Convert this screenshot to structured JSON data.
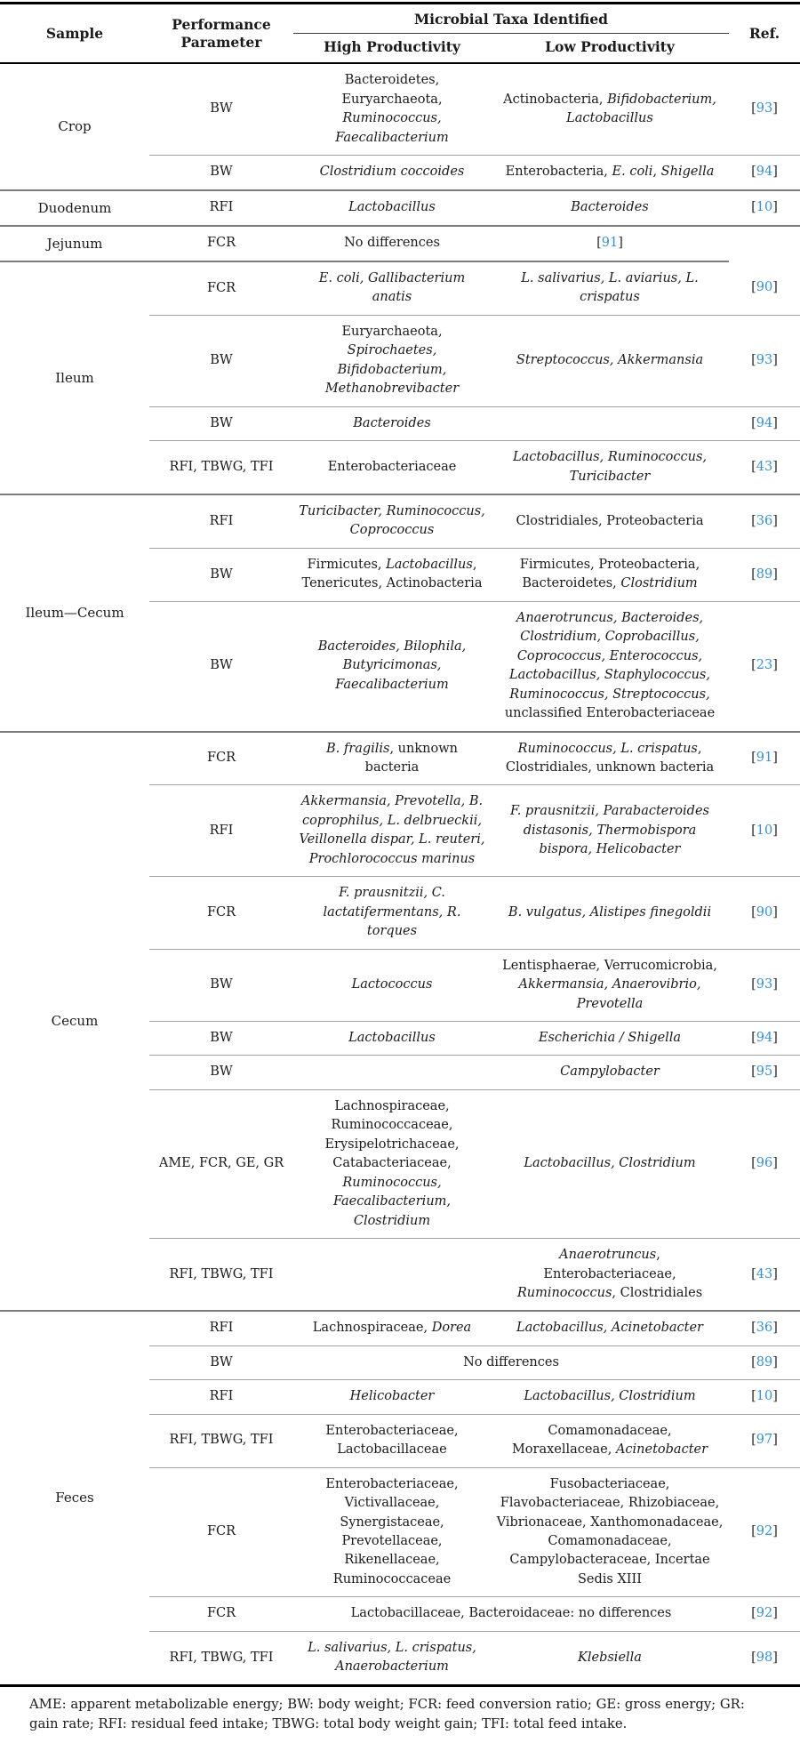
{
  "link_color": "#3a8fd1",
  "table": {
    "headers": {
      "sample": "Sample",
      "performance": "Performance Parameter",
      "taxa_group": "Microbial Taxa Identified",
      "high": "High Productivity",
      "low": "Low Productivity",
      "ref": "Ref."
    },
    "groups": [
      {
        "sample": "Crop",
        "rows": [
          {
            "param": "BW",
            "high": [
              {
                "t": "Bacteroidetes, Euryarchaeota, "
              },
              {
                "t": "Ruminococcus, Faecalibacterium",
                "i": true
              }
            ],
            "low": [
              {
                "t": "Actinobacteria, "
              },
              {
                "t": "Bifidobacterium, Lactobacillus",
                "i": true
              }
            ],
            "ref": "93"
          },
          {
            "param": "BW",
            "high": [
              {
                "t": "Clostridium coccoides",
                "i": true
              }
            ],
            "low": [
              {
                "t": "Enterobacteria, "
              },
              {
                "t": "E. coli",
                "i": true
              },
              {
                "t": ", "
              },
              {
                "t": "Shigella",
                "i": true
              }
            ],
            "ref": "94"
          }
        ]
      },
      {
        "sample": "Duodenum",
        "rows": [
          {
            "param": "RFI",
            "high": [
              {
                "t": "Lactobacillus",
                "i": true
              }
            ],
            "low": [
              {
                "t": "Bacteroides",
                "i": true
              }
            ],
            "ref": "10"
          }
        ]
      },
      {
        "sample": "Jejunum",
        "rows": [
          {
            "param": "FCR",
            "high": [
              {
                "t": "No differences"
              }
            ],
            "low": [
              {
                "r": "91"
              }
            ],
            "ref": null
          }
        ]
      },
      {
        "sample": "Ileum",
        "rows": [
          {
            "param": "FCR",
            "no_ref_rule": true,
            "high": [
              {
                "t": "E. coli, Gallibacterium anatis",
                "i": true
              }
            ],
            "low": [
              {
                "t": "L. salivarius, L. aviarius, L. crispatus",
                "i": true
              }
            ],
            "ref": "90"
          },
          {
            "param": "BW",
            "high": [
              {
                "t": "Euryarchaeota, "
              },
              {
                "t": "Spirochaetes, Bifidobacterium, Methanobrevibacter",
                "i": true
              }
            ],
            "low": [
              {
                "t": "Streptococcus, Akkermansia",
                "i": true
              }
            ],
            "ref": "93"
          },
          {
            "param": "BW",
            "high": [
              {
                "t": "Bacteroides",
                "i": true
              }
            ],
            "low": [],
            "ref": "94"
          },
          {
            "param": "RFI, TBWG, TFI",
            "high": [
              {
                "t": "Enterobacteriaceae"
              }
            ],
            "low": [
              {
                "t": "Lactobacillus, Ruminococcus, Turicibacter",
                "i": true
              }
            ],
            "ref": "43"
          }
        ]
      },
      {
        "sample": "Ileum—Cecum",
        "rows": [
          {
            "param": "RFI",
            "high": [
              {
                "t": "Turicibacter, Ruminococcus, Coprococcus",
                "i": true
              }
            ],
            "low": [
              {
                "t": "Clostridiales, Proteobacteria"
              }
            ],
            "ref": "36"
          },
          {
            "param": "BW",
            "high": [
              {
                "t": "Firmicutes, "
              },
              {
                "t": "Lactobacillus",
                "i": true
              },
              {
                "t": ", Tenericutes, Actinobacteria"
              }
            ],
            "low": [
              {
                "t": "Firmicutes, Proteobacteria, Bacteroidetes, "
              },
              {
                "t": "Clostridium",
                "i": true
              }
            ],
            "ref": "89"
          },
          {
            "param": "BW",
            "high": [
              {
                "t": "Bacteroides, Bilophila, Butyricimonas, Faecalibacterium",
                "i": true
              }
            ],
            "low": [
              {
                "t": "Anaerotruncus, Bacteroides, Clostridium, Coprobacillus, Coprococcus, Enterococcus, Lactobacillus, Staphylococcus, Ruminococcus, Streptococcus,",
                "i": true
              },
              {
                "t": " unclassified Enterobacteriaceae"
              }
            ],
            "ref": "23"
          }
        ]
      },
      {
        "sample": "Cecum",
        "rows": [
          {
            "param": "FCR",
            "high": [
              {
                "t": "B. fragilis",
                "i": true
              },
              {
                "t": ", unknown bacteria"
              }
            ],
            "low": [
              {
                "t": "Ruminococcus, L. crispatus",
                "i": true
              },
              {
                "t": ", Clostridiales, unknown bacteria"
              }
            ],
            "ref": "91"
          },
          {
            "param": "RFI",
            "high": [
              {
                "t": "Akkermansia, Prevotella, B. coprophilus, L. delbrueckii, Veillonella dispar, L. reuteri, Prochlorococcus marinus",
                "i": true
              }
            ],
            "low": [
              {
                "t": "F. prausnitzii, Parabacteroides distasonis, Thermobispora bispora, Helicobacter",
                "i": true
              }
            ],
            "ref": "10"
          },
          {
            "param": "FCR",
            "high": [
              {
                "t": "F. prausnitzii, C. lactatifermentans, R. torques",
                "i": true
              }
            ],
            "low": [
              {
                "t": "B. vulgatus, Alistipes finegoldii",
                "i": true
              }
            ],
            "ref": "90"
          },
          {
            "param": "BW",
            "high": [
              {
                "t": "Lactococcus",
                "i": true
              }
            ],
            "low": [
              {
                "t": "Lentisphaerae, Verrucomicrobia, "
              },
              {
                "t": "Akkermansia, Anaerovibrio, Prevotella",
                "i": true
              }
            ],
            "ref": "93"
          },
          {
            "param": "BW",
            "high": [
              {
                "t": "Lactobacillus",
                "i": true
              }
            ],
            "low": [
              {
                "t": "Escherichia / Shigella",
                "i": true
              }
            ],
            "ref": "94"
          },
          {
            "param": "BW",
            "high": [],
            "low": [
              {
                "t": "Campylobacter",
                "i": true
              }
            ],
            "ref": "95"
          },
          {
            "param": "AME, FCR, GE, GR",
            "high": [
              {
                "t": "Lachnospiraceae, Ruminococcaceae, Erysipelotrichaceae, Catabacteriaceae, "
              },
              {
                "t": "Ruminococcus, Faecalibacterium, Clostridium",
                "i": true
              }
            ],
            "low": [
              {
                "t": "Lactobacillus, Clostridium",
                "i": true
              }
            ],
            "ref": "96"
          },
          {
            "param": "RFI, TBWG, TFI",
            "high": [],
            "low": [
              {
                "t": "Anaerotruncus",
                "i": true
              },
              {
                "t": ", Enterobacteriaceae, "
              },
              {
                "t": "Ruminococcus",
                "i": true
              },
              {
                "t": ", Clostridiales"
              }
            ],
            "ref": "43"
          }
        ]
      },
      {
        "sample": "Feces",
        "rows": [
          {
            "param": "RFI",
            "high": [
              {
                "t": "Lachnospiraceae, "
              },
              {
                "t": "Dorea",
                "i": true
              }
            ],
            "low": [
              {
                "t": "Lactobacillus, Acinetobacter",
                "i": true
              }
            ],
            "ref": "36"
          },
          {
            "param": "BW",
            "span": [
              {
                "t": "No differences"
              }
            ],
            "ref": "89"
          },
          {
            "param": "RFI",
            "high": [
              {
                "t": "Helicobacter",
                "i": true
              }
            ],
            "low": [
              {
                "t": "Lactobacillus, Clostridium",
                "i": true
              }
            ],
            "ref": "10"
          },
          {
            "param": "RFI, TBWG, TFI",
            "high": [
              {
                "t": "Enterobacteriaceae, Lactobacillaceae"
              }
            ],
            "low": [
              {
                "t": "Comamonadaceae, Moraxellaceae, "
              },
              {
                "t": "Acinetobacter",
                "i": true
              }
            ],
            "ref": "97"
          },
          {
            "param": "FCR",
            "high": [
              {
                "t": "Enterobacteriaceae, Victivallaceae, Synergistaceae, Prevotellaceae, Rikenellaceae, Ruminococcaceae"
              }
            ],
            "low": [
              {
                "t": "Fusobacteriaceae, Flavobacteriaceae, Rhizobiaceae, Vibrionaceae, Xanthomonadaceae, Comamonadaceae, Campylobacteraceae, Incertae Sedis XIII"
              }
            ],
            "ref": "92"
          },
          {
            "param": "FCR",
            "span": [
              {
                "t": "Lactobacillaceae, Bacteroidaceae: no differences"
              }
            ],
            "ref": "92"
          },
          {
            "param": "RFI, TBWG, TFI",
            "high": [
              {
                "t": "L. salivarius, L. crispatus, Anaerobacterium",
                "i": true
              }
            ],
            "low": [
              {
                "t": "Klebsiella",
                "i": true
              }
            ],
            "ref": "98"
          }
        ]
      }
    ]
  },
  "footnote": "AME: apparent metabolizable energy; BW: body weight; FCR: feed conversion ratio; GE: gross energy; GR: gain rate; RFI: residual feed intake; TBWG: total body weight gain; TFI: total feed intake."
}
